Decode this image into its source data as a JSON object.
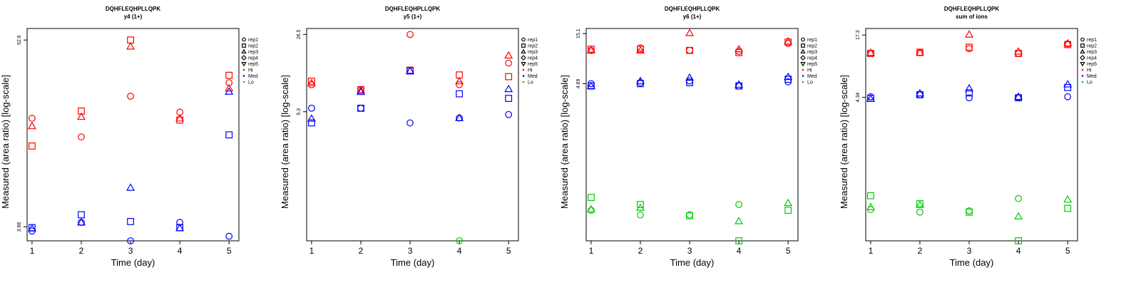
{
  "legend": {
    "reps": [
      {
        "name": "rep1",
        "marker": "circle"
      },
      {
        "name": "rep2",
        "marker": "square"
      },
      {
        "name": "rep3",
        "marker": "triangle-up"
      },
      {
        "name": "rep4",
        "marker": "diamond"
      },
      {
        "name": "rep5",
        "marker": "triangle-down"
      }
    ],
    "levels": [
      {
        "name": "Hi",
        "color": "#ff0000"
      },
      {
        "name": "Med",
        "color": "#0000ff"
      },
      {
        "name": "Lo",
        "color": "#00cc00"
      }
    ],
    "placement": "right"
  },
  "chart_data": [
    {
      "type": "scatter",
      "title": "DQHFLEQHPLLQPK",
      "subtitle": "y4 (1+)",
      "xlabel": "Time (day)",
      "ylabel": "Measured (area ratio) [log-scale]",
      "x_ticks": [
        1,
        2,
        3,
        4,
        5
      ],
      "xlim": [
        0.9,
        5.2
      ],
      "y_scale": "log",
      "y_ticks": [
        3.66,
        52.6
      ],
      "ylim": [
        3.0,
        62.0
      ],
      "grid": false,
      "points": [
        {
          "x": 1,
          "y": 17.2,
          "rep": "rep1",
          "level": "Hi"
        },
        {
          "x": 1,
          "y": 11.6,
          "rep": "rep2",
          "level": "Hi"
        },
        {
          "x": 1,
          "y": 15.4,
          "rep": "rep3",
          "level": "Hi"
        },
        {
          "x": 2,
          "y": 13.2,
          "rep": "rep1",
          "level": "Hi"
        },
        {
          "x": 2,
          "y": 19.1,
          "rep": "rep2",
          "level": "Hi"
        },
        {
          "x": 2,
          "y": 17.6,
          "rep": "rep3",
          "level": "Hi"
        },
        {
          "x": 3,
          "y": 23.6,
          "rep": "rep1",
          "level": "Hi"
        },
        {
          "x": 3,
          "y": 52.6,
          "rep": "rep2",
          "level": "Hi"
        },
        {
          "x": 3,
          "y": 48.0,
          "rep": "rep3",
          "level": "Hi"
        },
        {
          "x": 4,
          "y": 18.8,
          "rep": "rep1",
          "level": "Hi"
        },
        {
          "x": 4,
          "y": 16.8,
          "rep": "rep2",
          "level": "Hi"
        },
        {
          "x": 4,
          "y": 17.2,
          "rep": "rep3",
          "level": "Hi"
        },
        {
          "x": 5,
          "y": 28.6,
          "rep": "rep1",
          "level": "Hi"
        },
        {
          "x": 5,
          "y": 31.8,
          "rep": "rep2",
          "level": "Hi"
        },
        {
          "x": 5,
          "y": 26.4,
          "rep": "rep3",
          "level": "Hi"
        },
        {
          "x": 1,
          "y": 3.45,
          "rep": "rep1",
          "level": "Med"
        },
        {
          "x": 1,
          "y": 3.62,
          "rep": "rep2",
          "level": "Med"
        },
        {
          "x": 1,
          "y": 3.58,
          "rep": "rep3",
          "level": "Med"
        },
        {
          "x": 2,
          "y": 3.9,
          "rep": "rep1",
          "level": "Med"
        },
        {
          "x": 2,
          "y": 4.35,
          "rep": "rep2",
          "level": "Med"
        },
        {
          "x": 2,
          "y": 3.9,
          "rep": "rep3",
          "level": "Med"
        },
        {
          "x": 3,
          "y": 3.0,
          "rep": "rep1",
          "level": "Med"
        },
        {
          "x": 3,
          "y": 3.95,
          "rep": "rep2",
          "level": "Med"
        },
        {
          "x": 3,
          "y": 6.4,
          "rep": "rep3",
          "level": "Med"
        },
        {
          "x": 4,
          "y": 3.9,
          "rep": "rep1",
          "level": "Med"
        },
        {
          "x": 4,
          "y": 3.62,
          "rep": "rep2",
          "level": "Med"
        },
        {
          "x": 4,
          "y": 3.6,
          "rep": "rep3",
          "level": "Med"
        },
        {
          "x": 5,
          "y": 3.2,
          "rep": "rep1",
          "level": "Med"
        },
        {
          "x": 5,
          "y": 13.6,
          "rep": "rep2",
          "level": "Med"
        },
        {
          "x": 5,
          "y": 25.2,
          "rep": "rep3",
          "level": "Med"
        }
      ]
    },
    {
      "type": "scatter",
      "title": "DQHFLEQHPLLQPK",
      "subtitle": "y5 (1+)",
      "xlabel": "Time (day)",
      "ylabel": "Measured (area ratio) [log-scale]",
      "x_ticks": [
        1,
        2,
        3,
        4,
        5
      ],
      "xlim": [
        0.9,
        5.2
      ],
      "y_scale": "log",
      "y_ticks": [
        5.3,
        26.5
      ],
      "ylim": [
        0.36,
        30.0
      ],
      "grid": false,
      "points": [
        {
          "x": 1,
          "y": 9.3,
          "rep": "rep1",
          "level": "Hi"
        },
        {
          "x": 1,
          "y": 10.0,
          "rep": "rep2",
          "level": "Hi"
        },
        {
          "x": 1,
          "y": 9.6,
          "rep": "rep3",
          "level": "Hi"
        },
        {
          "x": 2,
          "y": 8.3,
          "rep": "rep1",
          "level": "Hi"
        },
        {
          "x": 2,
          "y": 8.4,
          "rep": "rep2",
          "level": "Hi"
        },
        {
          "x": 2,
          "y": 8.2,
          "rep": "rep3",
          "level": "Hi"
        },
        {
          "x": 3,
          "y": 26.5,
          "rep": "rep1",
          "level": "Hi"
        },
        {
          "x": 3,
          "y": 12.6,
          "rep": "rep2",
          "level": "Hi"
        },
        {
          "x": 3,
          "y": 12.4,
          "rep": "rep3",
          "level": "Hi"
        },
        {
          "x": 4,
          "y": 9.3,
          "rep": "rep1",
          "level": "Hi"
        },
        {
          "x": 4,
          "y": 11.4,
          "rep": "rep2",
          "level": "Hi"
        },
        {
          "x": 4,
          "y": 10.0,
          "rep": "rep3",
          "level": "Hi"
        },
        {
          "x": 5,
          "y": 14.6,
          "rep": "rep1",
          "level": "Hi"
        },
        {
          "x": 5,
          "y": 11.0,
          "rep": "rep2",
          "level": "Hi"
        },
        {
          "x": 5,
          "y": 17.1,
          "rep": "rep3",
          "level": "Hi"
        },
        {
          "x": 1,
          "y": 5.7,
          "rep": "rep1",
          "level": "Med"
        },
        {
          "x": 1,
          "y": 4.2,
          "rep": "rep2",
          "level": "Med"
        },
        {
          "x": 1,
          "y": 4.6,
          "rep": "rep3",
          "level": "Med"
        },
        {
          "x": 2,
          "y": 5.7,
          "rep": "rep1",
          "level": "Med"
        },
        {
          "x": 2,
          "y": 5.7,
          "rep": "rep2",
          "level": "Med"
        },
        {
          "x": 2,
          "y": 8.0,
          "rep": "rep3",
          "level": "Med"
        },
        {
          "x": 3,
          "y": 4.2,
          "rep": "rep1",
          "level": "Med"
        },
        {
          "x": 3,
          "y": 12.4,
          "rep": "rep2",
          "level": "Med"
        },
        {
          "x": 3,
          "y": 12.4,
          "rep": "rep3",
          "level": "Med"
        },
        {
          "x": 4,
          "y": 4.65,
          "rep": "rep1",
          "level": "Med"
        },
        {
          "x": 4,
          "y": 7.7,
          "rep": "rep2",
          "level": "Med"
        },
        {
          "x": 4,
          "y": 4.65,
          "rep": "rep3",
          "level": "Med"
        },
        {
          "x": 5,
          "y": 5.0,
          "rep": "rep1",
          "level": "Med"
        },
        {
          "x": 5,
          "y": 7.0,
          "rep": "rep2",
          "level": "Med"
        },
        {
          "x": 5,
          "y": 8.5,
          "rep": "rep3",
          "level": "Med"
        },
        {
          "x": 4,
          "y": 0.36,
          "rep": "rep1",
          "level": "Lo"
        }
      ]
    },
    {
      "type": "scatter",
      "title": "DQHFLEQHPLLQPK",
      "subtitle": "y6 (1+)",
      "xlabel": "Time (day)",
      "ylabel": "Measured (area ratio) [log-scale]",
      "x_ticks": [
        1,
        2,
        3,
        4,
        5
      ],
      "xlim": [
        0.9,
        5.2
      ],
      "y_scale": "log",
      "y_ticks": [
        4.69,
        15.1
      ],
      "ylim": [
        0.12,
        17.0
      ],
      "grid": false,
      "points": [
        {
          "x": 1,
          "y": 10.2,
          "rep": "rep1",
          "level": "Hi"
        },
        {
          "x": 1,
          "y": 10.5,
          "rep": "rep2",
          "level": "Hi"
        },
        {
          "x": 1,
          "y": 10.2,
          "rep": "rep3",
          "level": "Hi"
        },
        {
          "x": 2,
          "y": 10.8,
          "rep": "rep1",
          "level": "Hi"
        },
        {
          "x": 2,
          "y": 10.5,
          "rep": "rep2",
          "level": "Hi"
        },
        {
          "x": 2,
          "y": 10.2,
          "rep": "rep3",
          "level": "Hi"
        },
        {
          "x": 3,
          "y": 10.2,
          "rep": "rep1",
          "level": "Hi"
        },
        {
          "x": 3,
          "y": 10.2,
          "rep": "rep2",
          "level": "Hi"
        },
        {
          "x": 3,
          "y": 15.3,
          "rep": "rep3",
          "level": "Hi"
        },
        {
          "x": 4,
          "y": 10.0,
          "rep": "rep1",
          "level": "Hi"
        },
        {
          "x": 4,
          "y": 9.7,
          "rep": "rep2",
          "level": "Hi"
        },
        {
          "x": 4,
          "y": 10.5,
          "rep": "rep3",
          "level": "Hi"
        },
        {
          "x": 5,
          "y": 12.0,
          "rep": "rep1",
          "level": "Hi"
        },
        {
          "x": 5,
          "y": 12.4,
          "rep": "rep2",
          "level": "Hi"
        },
        {
          "x": 5,
          "y": 12.6,
          "rep": "rep3",
          "level": "Hi"
        },
        {
          "x": 1,
          "y": 4.7,
          "rep": "rep1",
          "level": "Med"
        },
        {
          "x": 1,
          "y": 4.45,
          "rep": "rep2",
          "level": "Med"
        },
        {
          "x": 1,
          "y": 4.45,
          "rep": "rep3",
          "level": "Med"
        },
        {
          "x": 2,
          "y": 4.8,
          "rep": "rep1",
          "level": "Med"
        },
        {
          "x": 2,
          "y": 4.7,
          "rep": "rep2",
          "level": "Med"
        },
        {
          "x": 2,
          "y": 5.0,
          "rep": "rep3",
          "level": "Med"
        },
        {
          "x": 3,
          "y": 5.0,
          "rep": "rep1",
          "level": "Med"
        },
        {
          "x": 3,
          "y": 4.8,
          "rep": "rep2",
          "level": "Med"
        },
        {
          "x": 3,
          "y": 5.4,
          "rep": "rep3",
          "level": "Med"
        },
        {
          "x": 4,
          "y": 4.45,
          "rep": "rep1",
          "level": "Med"
        },
        {
          "x": 4,
          "y": 4.45,
          "rep": "rep2",
          "level": "Med"
        },
        {
          "x": 4,
          "y": 4.6,
          "rep": "rep3",
          "level": "Med"
        },
        {
          "x": 5,
          "y": 4.9,
          "rep": "rep1",
          "level": "Med"
        },
        {
          "x": 5,
          "y": 5.2,
          "rep": "rep2",
          "level": "Med"
        },
        {
          "x": 5,
          "y": 5.5,
          "rep": "rep3",
          "level": "Med"
        },
        {
          "x": 1,
          "y": 0.245,
          "rep": "rep1",
          "level": "Lo"
        },
        {
          "x": 1,
          "y": 0.33,
          "rep": "rep2",
          "level": "Lo"
        },
        {
          "x": 1,
          "y": 0.25,
          "rep": "rep3",
          "level": "Lo"
        },
        {
          "x": 2,
          "y": 0.22,
          "rep": "rep1",
          "level": "Lo"
        },
        {
          "x": 2,
          "y": 0.28,
          "rep": "rep2",
          "level": "Lo"
        },
        {
          "x": 2,
          "y": 0.26,
          "rep": "rep3",
          "level": "Lo"
        },
        {
          "x": 3,
          "y": 0.22,
          "rep": "rep1",
          "level": "Lo"
        },
        {
          "x": 3,
          "y": 0.215,
          "rep": "rep2",
          "level": "Lo"
        },
        {
          "x": 4,
          "y": 0.28,
          "rep": "rep1",
          "level": "Lo"
        },
        {
          "x": 4,
          "y": 0.12,
          "rep": "rep2",
          "level": "Lo"
        },
        {
          "x": 4,
          "y": 0.19,
          "rep": "rep3",
          "level": "Lo"
        },
        {
          "x": 5,
          "y": 0.245,
          "rep": "rep2",
          "level": "Lo"
        },
        {
          "x": 5,
          "y": 0.29,
          "rep": "rep3",
          "level": "Lo"
        }
      ]
    },
    {
      "type": "scatter",
      "title": "DQHFLEQHPLLQPK",
      "subtitle": "sum of ions",
      "xlabel": "Time (day)",
      "ylabel": "Measured (area ratio) [log-scale]",
      "x_ticks": [
        1,
        2,
        3,
        4,
        5
      ],
      "xlim": [
        0.9,
        5.2
      ],
      "y_scale": "log",
      "y_ticks": [
        4.34,
        17.3
      ],
      "ylim": [
        0.18,
        20.0
      ],
      "grid": false,
      "points": [
        {
          "x": 1,
          "y": 11.5,
          "rep": "rep1",
          "level": "Hi"
        },
        {
          "x": 1,
          "y": 11.5,
          "rep": "rep2",
          "level": "Hi"
        },
        {
          "x": 1,
          "y": 11.7,
          "rep": "rep3",
          "level": "Hi"
        },
        {
          "x": 2,
          "y": 11.7,
          "rep": "rep1",
          "level": "Hi"
        },
        {
          "x": 2,
          "y": 11.8,
          "rep": "rep2",
          "level": "Hi"
        },
        {
          "x": 2,
          "y": 11.7,
          "rep": "rep3",
          "level": "Hi"
        },
        {
          "x": 3,
          "y": 12.8,
          "rep": "rep1",
          "level": "Hi"
        },
        {
          "x": 3,
          "y": 13.2,
          "rep": "rep2",
          "level": "Hi"
        },
        {
          "x": 3,
          "y": 17.5,
          "rep": "rep3",
          "level": "Hi"
        },
        {
          "x": 4,
          "y": 11.5,
          "rep": "rep1",
          "level": "Hi"
        },
        {
          "x": 4,
          "y": 11.5,
          "rep": "rep2",
          "level": "Hi"
        },
        {
          "x": 4,
          "y": 12.0,
          "rep": "rep3",
          "level": "Hi"
        },
        {
          "x": 5,
          "y": 14.2,
          "rep": "rep1",
          "level": "Hi"
        },
        {
          "x": 5,
          "y": 14.0,
          "rep": "rep2",
          "level": "Hi"
        },
        {
          "x": 5,
          "y": 14.4,
          "rep": "rep3",
          "level": "Hi"
        },
        {
          "x": 1,
          "y": 4.4,
          "rep": "rep1",
          "level": "Med"
        },
        {
          "x": 1,
          "y": 4.25,
          "rep": "rep2",
          "level": "Med"
        },
        {
          "x": 1,
          "y": 4.2,
          "rep": "rep3",
          "level": "Med"
        },
        {
          "x": 2,
          "y": 4.6,
          "rep": "rep1",
          "level": "Med"
        },
        {
          "x": 2,
          "y": 4.6,
          "rep": "rep2",
          "level": "Med"
        },
        {
          "x": 2,
          "y": 4.75,
          "rep": "rep3",
          "level": "Med"
        },
        {
          "x": 3,
          "y": 4.3,
          "rep": "rep1",
          "level": "Med"
        },
        {
          "x": 3,
          "y": 4.8,
          "rep": "rep2",
          "level": "Med"
        },
        {
          "x": 3,
          "y": 5.3,
          "rep": "rep3",
          "level": "Med"
        },
        {
          "x": 4,
          "y": 4.34,
          "rep": "rep1",
          "level": "Med"
        },
        {
          "x": 4,
          "y": 4.3,
          "rep": "rep2",
          "level": "Med"
        },
        {
          "x": 4,
          "y": 4.4,
          "rep": "rep3",
          "level": "Med"
        },
        {
          "x": 5,
          "y": 4.4,
          "rep": "rep1",
          "level": "Med"
        },
        {
          "x": 5,
          "y": 5.4,
          "rep": "rep2",
          "level": "Med"
        },
        {
          "x": 5,
          "y": 5.8,
          "rep": "rep3",
          "level": "Med"
        },
        {
          "x": 1,
          "y": 0.36,
          "rep": "rep1",
          "level": "Lo"
        },
        {
          "x": 1,
          "y": 0.49,
          "rep": "rep2",
          "level": "Lo"
        },
        {
          "x": 1,
          "y": 0.38,
          "rep": "rep3",
          "level": "Lo"
        },
        {
          "x": 2,
          "y": 0.34,
          "rep": "rep1",
          "level": "Lo"
        },
        {
          "x": 2,
          "y": 0.41,
          "rep": "rep2",
          "level": "Lo"
        },
        {
          "x": 2,
          "y": 0.4,
          "rep": "rep3",
          "level": "Lo"
        },
        {
          "x": 3,
          "y": 0.35,
          "rep": "rep1",
          "level": "Lo"
        },
        {
          "x": 3,
          "y": 0.34,
          "rep": "rep2",
          "level": "Lo"
        },
        {
          "x": 4,
          "y": 0.46,
          "rep": "rep1",
          "level": "Lo"
        },
        {
          "x": 4,
          "y": 0.18,
          "rep": "rep2",
          "level": "Lo"
        },
        {
          "x": 4,
          "y": 0.31,
          "rep": "rep3",
          "level": "Lo"
        },
        {
          "x": 5,
          "y": 0.37,
          "rep": "rep2",
          "level": "Lo"
        },
        {
          "x": 5,
          "y": 0.45,
          "rep": "rep3",
          "level": "Lo"
        }
      ]
    }
  ]
}
